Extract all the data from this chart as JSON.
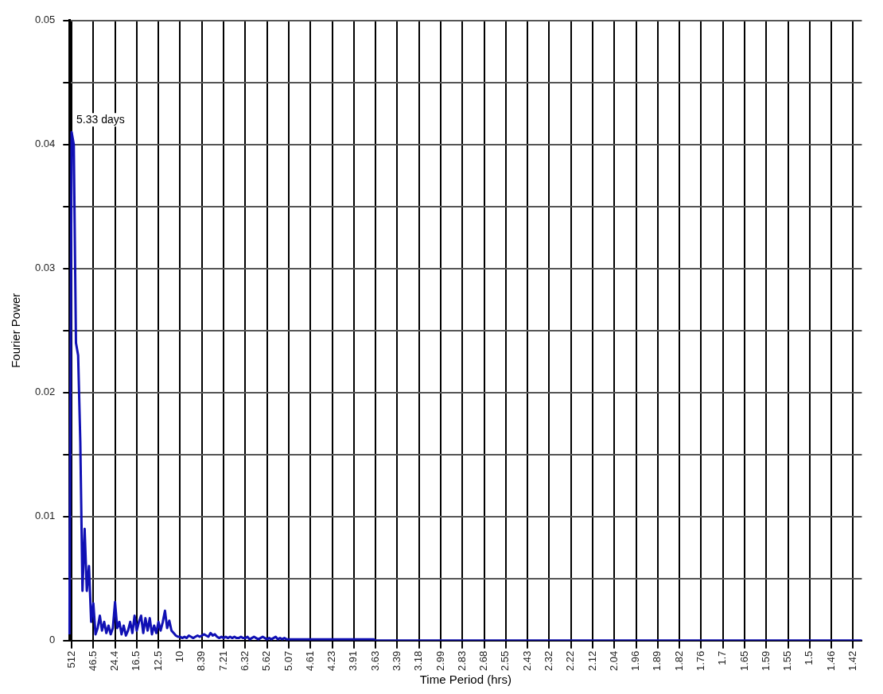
{
  "chart_data": {
    "type": "line",
    "xlabel": "Time Period (hrs)",
    "ylabel": "Fourier Power",
    "annotations": [
      {
        "text": "5.33 days",
        "x": "512",
        "y": 0.041
      }
    ],
    "categories": [
      null,
      "512",
      null,
      null,
      null,
      null,
      null,
      null,
      null,
      null,
      null,
      "46.5",
      null,
      null,
      null,
      null,
      null,
      null,
      null,
      null,
      null,
      "24.4",
      null,
      null,
      null,
      null,
      null,
      null,
      null,
      null,
      null,
      "16.5",
      null,
      null,
      null,
      null,
      null,
      null,
      null,
      null,
      null,
      "12.5",
      null,
      null,
      null,
      null,
      null,
      null,
      null,
      null,
      null,
      "10",
      null,
      null,
      null,
      null,
      null,
      null,
      null,
      null,
      null,
      "8.39",
      null,
      null,
      null,
      null,
      null,
      null,
      null,
      null,
      null,
      "7.21",
      null,
      null,
      null,
      null,
      null,
      null,
      null,
      null,
      null,
      "6.32",
      null,
      null,
      null,
      null,
      null,
      null,
      null,
      null,
      null,
      "5.62",
      null,
      null,
      null,
      null,
      null,
      null,
      null,
      null,
      null,
      "5.07",
      null,
      null,
      null,
      null,
      null,
      null,
      null,
      null,
      null,
      "4.61",
      null,
      null,
      null,
      null,
      null,
      null,
      null,
      null,
      null,
      "4.23",
      null,
      null,
      null,
      null,
      null,
      null,
      null,
      null,
      null,
      "3.91",
      null,
      null,
      null,
      null,
      null,
      null,
      null,
      null,
      null,
      "3.63",
      null,
      null,
      null,
      null,
      null,
      null,
      null,
      null,
      null,
      "3.39",
      null,
      null,
      null,
      null,
      null,
      null,
      null,
      null,
      null,
      "3.18",
      null,
      null,
      null,
      null,
      null,
      null,
      null,
      null,
      null,
      "2.99",
      null,
      null,
      null,
      null,
      null,
      null,
      null,
      null,
      null,
      "2.83",
      null,
      null,
      null,
      null,
      null,
      null,
      null,
      null,
      null,
      "2.68",
      null,
      null,
      null,
      null,
      null,
      null,
      null,
      null,
      null,
      "2.55",
      null,
      null,
      null,
      null,
      null,
      null,
      null,
      null,
      null,
      "2.43",
      null,
      null,
      null,
      null,
      null,
      null,
      null,
      null,
      null,
      "2.32",
      null,
      null,
      null,
      null,
      null,
      null,
      null,
      null,
      null,
      "2.22",
      null,
      null,
      null,
      null,
      null,
      null,
      null,
      null,
      null,
      "2.12",
      null,
      null,
      null,
      null,
      null,
      null,
      null,
      null,
      null,
      "2.04",
      null,
      null,
      null,
      null,
      null,
      null,
      null,
      null,
      null,
      "1.96",
      null,
      null,
      null,
      null,
      null,
      null,
      null,
      null,
      null,
      "1.89",
      null,
      null,
      null,
      null,
      null,
      null,
      null,
      null,
      null,
      "1.82",
      null,
      null,
      null,
      null,
      null,
      null,
      null,
      null,
      null,
      "1.76",
      null,
      null,
      null,
      null,
      null,
      null,
      null,
      null,
      null,
      "1.7",
      null,
      null,
      null,
      null,
      null,
      null,
      null,
      null,
      null,
      "1.65",
      null,
      null,
      null,
      null,
      null,
      null,
      null,
      null,
      null,
      "1.59",
      null,
      null,
      null,
      null,
      null,
      null,
      null,
      null,
      null,
      "1.55",
      null,
      null,
      null,
      null,
      null,
      null,
      null,
      null,
      null,
      "1.5",
      null,
      null,
      null,
      null,
      null,
      null,
      null,
      null,
      null,
      "1.46",
      null,
      null,
      null,
      null,
      null,
      null,
      null,
      null,
      null,
      "1.42",
      null,
      null,
      null,
      null
    ],
    "series": [
      {
        "color": "#1010b4",
        "values": [
          0.0005,
          0.041,
          0.04,
          0.024,
          0.023,
          0.016,
          0.004,
          0.009,
          0.004,
          0.006,
          0.0015,
          0.003,
          0.0005,
          0.001,
          0.002,
          0.0008,
          0.0015,
          0.0006,
          0.0012,
          0.0005,
          0.001,
          0.0031,
          0.001,
          0.0015,
          0.0005,
          0.0012,
          0.0004,
          0.0008,
          0.0015,
          0.0006,
          0.002,
          0.0008,
          0.0015,
          0.002,
          0.0006,
          0.0018,
          0.0008,
          0.0018,
          0.0005,
          0.0012,
          0.0006,
          0.0015,
          0.0008,
          0.0015,
          0.0024,
          0.001,
          0.0016,
          0.0008,
          0.0006,
          0.0004,
          0.0003,
          0.0003,
          0.0002,
          0.0003,
          0.0002,
          0.0004,
          0.0003,
          0.0002,
          0.0003,
          0.0004,
          0.0003,
          0.0004,
          0.0005,
          0.0004,
          0.0003,
          0.0006,
          0.0004,
          0.0005,
          0.0003,
          0.0002,
          0.0003,
          0.0002,
          0.0003,
          0.0002,
          0.0003,
          0.0002,
          0.0003,
          0.0002,
          0.0002,
          0.0003,
          0.0002,
          0.0002,
          0.0003,
          0.0001,
          0.0002,
          0.0003,
          0.0002,
          0.0001,
          0.0002,
          0.0003,
          0.0002,
          0.0001,
          0.0002,
          0.0001,
          0.0002,
          0.0003,
          0.0001,
          0.0002,
          0.0001,
          0.0002,
          0.0001,
          0.0001,
          0.0001,
          0.0001,
          0.0001,
          0.0001,
          0.0001,
          0.0001,
          0.0001,
          0.0001,
          0.0001,
          0.0001,
          0.0001,
          0.0001,
          0.0001,
          0.0001,
          0.0001,
          0.0001,
          0.0001,
          0.0001,
          0.0001,
          0.0001,
          0.0001,
          0.0001,
          0.0001,
          0.0001,
          0.0001,
          0.0001,
          0.0001,
          0.0001,
          0.0001,
          0.0001,
          0.0001,
          0.0001,
          0.0001,
          0.0001,
          0.0001,
          0.0001,
          0.0001,
          0.0001,
          0.0001,
          0,
          0,
          0,
          0,
          0,
          0,
          0,
          0,
          0,
          0,
          0,
          0,
          0,
          0,
          0,
          0,
          0,
          0,
          0,
          0,
          0,
          0,
          0,
          0,
          0,
          0,
          0,
          0,
          0,
          0,
          0,
          0,
          0,
          0,
          0,
          0,
          0,
          0,
          0,
          0,
          0,
          0,
          0,
          0,
          0,
          0,
          0,
          0,
          0,
          0,
          0,
          0,
          0,
          0,
          0,
          0,
          0,
          0,
          0,
          0,
          0,
          0,
          0,
          0,
          0,
          0,
          0,
          0,
          0,
          0,
          0,
          0,
          0,
          0,
          0,
          0,
          0,
          0,
          0,
          0,
          0,
          0,
          0,
          0,
          0,
          0,
          0,
          0,
          0,
          0,
          0,
          0,
          0,
          0,
          0,
          0,
          0,
          0,
          0,
          0,
          0,
          0,
          0,
          0,
          0,
          0,
          0,
          0,
          0,
          0,
          0,
          0,
          0,
          0,
          0,
          0,
          0,
          0,
          0,
          0,
          0,
          0,
          0,
          0,
          0,
          0,
          0,
          0,
          0,
          0,
          0,
          0,
          0,
          0,
          0,
          0,
          0,
          0,
          0,
          0,
          0,
          0,
          0,
          0,
          0,
          0,
          0,
          0,
          0,
          0,
          0,
          0,
          0,
          0,
          0,
          0,
          0,
          0,
          0,
          0,
          0,
          0,
          0,
          0,
          0,
          0,
          0,
          0,
          0,
          0,
          0,
          0,
          0,
          0,
          0,
          0,
          0,
          0,
          0,
          0,
          0,
          0,
          0,
          0,
          0,
          0,
          0,
          0,
          0,
          0,
          0,
          0,
          0,
          0,
          0,
          0,
          0,
          0,
          0,
          0,
          0,
          0,
          0,
          0,
          0,
          0,
          0,
          0,
          0,
          0,
          0,
          0,
          0,
          0,
          0,
          0,
          0,
          0,
          0,
          0,
          0,
          0,
          0,
          0,
          0
        ]
      }
    ],
    "ylim": [
      0,
      0.05
    ],
    "yticks": [
      0,
      {
        "value": 0.005,
        "label": null
      },
      0.01,
      {
        "value": 0.015,
        "label": null
      },
      0.02,
      {
        "value": 0.025,
        "label": null
      },
      0.03,
      {
        "value": 0.035,
        "label": null
      },
      0.04,
      {
        "value": 0.045,
        "label": null
      },
      0.05
    ],
    "grid": true,
    "marker": "none",
    "line_style": "solid"
  }
}
